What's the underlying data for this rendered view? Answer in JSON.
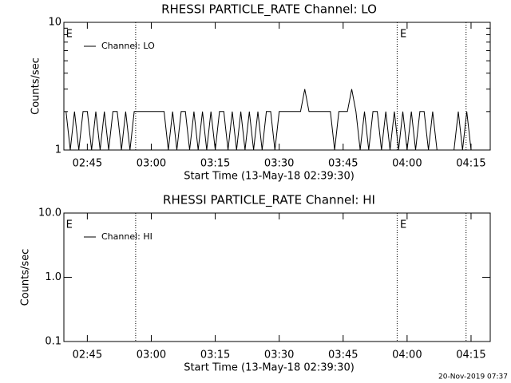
{
  "chart_data": [
    {
      "type": "line",
      "title": "RHESSI PARTICLE_RATE Channel: LO",
      "ylabel": "Counts/sec",
      "xlabel": "Start Time (13-May-18 02:39:30)",
      "log_y": true,
      "ylim": [
        1,
        10
      ],
      "yticks": [
        1,
        10
      ],
      "yminorticks": [
        2,
        3,
        4,
        5,
        6,
        7,
        8,
        9
      ],
      "xlim": [
        "02:39:30",
        "04:19:30"
      ],
      "xticks": [
        "02:45",
        "03:00",
        "03:15",
        "03:30",
        "03:45",
        "04:00",
        "04:15"
      ],
      "markers": [
        "02:56:20",
        "03:57:40",
        "04:13:50"
      ],
      "annotations": [
        {
          "x": "02:40:00",
          "text": "E"
        },
        {
          "x": "03:58:20",
          "text": "E"
        }
      ],
      "legend": "upper left",
      "x": [
        "02:40",
        "02:41",
        "02:42",
        "02:43",
        "02:44",
        "02:45",
        "02:46",
        "02:47",
        "02:48",
        "02:49",
        "02:50",
        "02:51",
        "02:52",
        "02:53",
        "02:54",
        "02:55",
        "02:56",
        "02:57",
        "02:58",
        "02:59",
        "03:00",
        "03:01",
        "03:02",
        "03:03",
        "03:04",
        "03:05",
        "03:06",
        "03:07",
        "03:08",
        "03:09",
        "03:10",
        "03:11",
        "03:12",
        "03:13",
        "03:14",
        "03:15",
        "03:16",
        "03:17",
        "03:18",
        "03:19",
        "03:20",
        "03:21",
        "03:22",
        "03:23",
        "03:24",
        "03:25",
        "03:26",
        "03:27",
        "03:28",
        "03:29",
        "03:30",
        "03:31",
        "03:32",
        "03:33",
        "03:34",
        "03:35",
        "03:36",
        "03:37",
        "03:38",
        "03:39",
        "03:40",
        "03:41",
        "03:42",
        "03:43",
        "03:44",
        "03:45",
        "03:46",
        "03:47",
        "03:48",
        "03:49",
        "03:50",
        "03:51",
        "03:52",
        "03:53",
        "03:54",
        "03:55",
        "03:56",
        "03:57",
        "03:58",
        "03:59",
        "04:00",
        "04:01",
        "04:02",
        "04:03",
        "04:04",
        "04:05",
        "04:06",
        "04:07",
        "04:08",
        "04:09",
        "04:10",
        "04:11",
        "04:12",
        "04:13",
        "04:14",
        "04:15",
        "04:16",
        "04:17",
        "04:18",
        "04:19"
      ],
      "series": [
        {
          "name": "Channel: LO",
          "color": "#000000",
          "values": [
            2,
            1,
            2,
            1,
            2,
            2,
            1,
            2,
            1,
            2,
            1,
            2,
            2,
            1,
            2,
            1,
            2,
            2,
            2,
            2,
            2,
            2,
            2,
            2,
            1,
            2,
            1,
            2,
            2,
            1,
            2,
            1,
            2,
            1,
            2,
            1,
            2,
            2,
            1,
            2,
            1,
            2,
            1,
            2,
            1,
            2,
            1,
            2,
            2,
            1,
            2,
            2,
            2,
            2,
            2,
            2,
            3,
            2,
            2,
            2,
            2,
            2,
            2,
            1,
            2,
            2,
            2,
            3,
            2,
            1,
            2,
            1,
            2,
            2,
            1,
            2,
            1,
            2,
            1,
            2,
            1,
            2,
            1,
            2,
            2,
            1,
            2,
            1,
            1,
            1,
            1,
            1,
            2,
            1,
            2,
            1,
            1,
            1,
            1,
            1
          ]
        }
      ]
    },
    {
      "type": "line",
      "title": "RHESSI PARTICLE_RATE Channel: HI",
      "ylabel": "Counts/sec",
      "xlabel": "Start Time (13-May-18 02:39:30)",
      "log_y": true,
      "ylim": [
        0.1,
        10
      ],
      "yticks": [
        0.1,
        {
          "value": 1,
          "label": "1.0"
        },
        {
          "value": 10,
          "label": "10.0"
        }
      ],
      "xlim": [
        "02:39:30",
        "04:19:30"
      ],
      "xticks": [
        "02:45",
        "03:00",
        "03:15",
        "03:30",
        "03:45",
        "04:00",
        "04:15"
      ],
      "markers": [
        "02:56:20",
        "03:57:40",
        "04:13:50"
      ],
      "annotations": [
        {
          "x": "02:40:00",
          "text": "E"
        },
        {
          "x": "03:58:20",
          "text": "E"
        }
      ],
      "legend": "upper left",
      "x": [],
      "series": [
        {
          "name": "Channel: HI",
          "color": "#000000",
          "values": []
        }
      ]
    }
  ],
  "timestamp": "20-Nov-2019 07:37"
}
